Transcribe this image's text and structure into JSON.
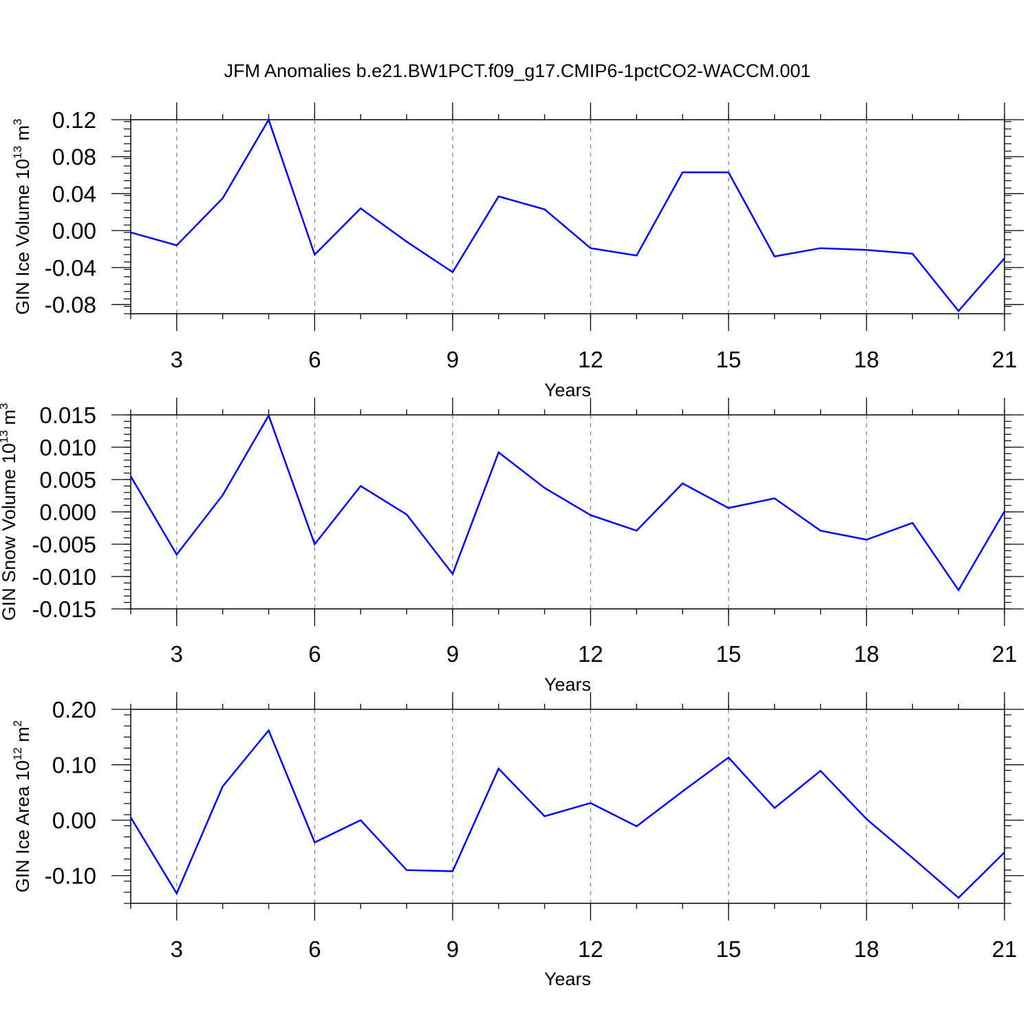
{
  "title": "JFM Anomalies b.e21.BW1PCT.f09_g17.CMIP6-1pctCO2-WACCM.001",
  "line_color": "#0000ff",
  "chart_data": [
    {
      "type": "line",
      "xlabel": "Years",
      "ylabel_parts": {
        "pre": "GIN Ice Volume 10",
        "sup1": "13",
        "mid": " m",
        "sup2": "3"
      },
      "xlim": [
        2,
        21
      ],
      "ylim": [
        -0.09,
        0.12
      ],
      "xticks": [
        3,
        6,
        9,
        12,
        15,
        18,
        21
      ],
      "xtick_labels": [
        "3",
        "6",
        "9",
        "12",
        "15",
        "18",
        "21"
      ],
      "yticks": [
        -0.08,
        -0.04,
        0.0,
        0.04,
        0.08,
        0.12
      ],
      "ytick_labels": [
        "-0.08",
        "-0.04",
        "0.00",
        "0.04",
        "0.08",
        "0.12"
      ],
      "series": [
        {
          "x": [
            2,
            3,
            4,
            5,
            6,
            7,
            8,
            9,
            10,
            11,
            12,
            13,
            14,
            15,
            16,
            17,
            18,
            19,
            20,
            21
          ],
          "y": [
            -0.002,
            -0.016,
            0.035,
            0.12,
            -0.026,
            0.024,
            -0.012,
            -0.045,
            0.037,
            0.023,
            -0.019,
            -0.027,
            0.063,
            0.063,
            -0.028,
            -0.019,
            -0.021,
            -0.025,
            -0.087,
            -0.03
          ]
        }
      ]
    },
    {
      "type": "line",
      "xlabel": "Years",
      "ylabel_parts": {
        "pre": "GIN Snow Volume 10",
        "sup1": "13",
        "mid": " m",
        "sup2": "3"
      },
      "xlim": [
        2,
        21
      ],
      "ylim": [
        -0.015,
        0.015
      ],
      "xticks": [
        3,
        6,
        9,
        12,
        15,
        18,
        21
      ],
      "xtick_labels": [
        "3",
        "6",
        "9",
        "12",
        "15",
        "18",
        "21"
      ],
      "yticks": [
        -0.015,
        -0.01,
        -0.005,
        0.0,
        0.005,
        0.01,
        0.015
      ],
      "ytick_labels": [
        "-0.015",
        "-0.010",
        "-0.005",
        "0.000",
        "0.005",
        "0.010",
        "0.015"
      ],
      "series": [
        {
          "x": [
            2,
            3,
            4,
            5,
            6,
            7,
            8,
            9,
            10,
            11,
            12,
            13,
            14,
            15,
            16,
            17,
            18,
            19,
            20,
            21
          ],
          "y": [
            0.0055,
            -0.0066,
            0.0026,
            0.0149,
            -0.005,
            0.004,
            -0.0004,
            -0.0096,
            0.0092,
            0.0037,
            -0.0005,
            -0.0029,
            0.0044,
            0.0006,
            0.0021,
            -0.0029,
            -0.0043,
            -0.0017,
            -0.0121,
            0.0001
          ]
        }
      ]
    },
    {
      "type": "line",
      "xlabel": "Years",
      "ylabel_parts": {
        "pre": "GIN Ice Area 10",
        "sup1": "12",
        "mid": " m",
        "sup2": "2"
      },
      "xlim": [
        2,
        21
      ],
      "ylim": [
        -0.15,
        0.2
      ],
      "xticks": [
        3,
        6,
        9,
        12,
        15,
        18,
        21
      ],
      "xtick_labels": [
        "3",
        "6",
        "9",
        "12",
        "15",
        "18",
        "21"
      ],
      "yticks": [
        -0.1,
        0.0,
        0.1,
        0.2
      ],
      "ytick_labels": [
        "-0.10",
        "0.00",
        "0.10",
        "0.20"
      ],
      "series": [
        {
          "x": [
            2,
            3,
            4,
            5,
            6,
            7,
            8,
            9,
            10,
            11,
            12,
            13,
            14,
            15,
            16,
            17,
            18,
            19,
            20,
            21
          ],
          "y": [
            0.005,
            -0.132,
            0.061,
            0.162,
            -0.04,
            0.0,
            -0.09,
            -0.092,
            0.093,
            0.007,
            0.031,
            -0.011,
            0.052,
            0.113,
            0.022,
            0.089,
            0.002,
            -0.068,
            -0.14,
            -0.058
          ]
        }
      ]
    }
  ]
}
